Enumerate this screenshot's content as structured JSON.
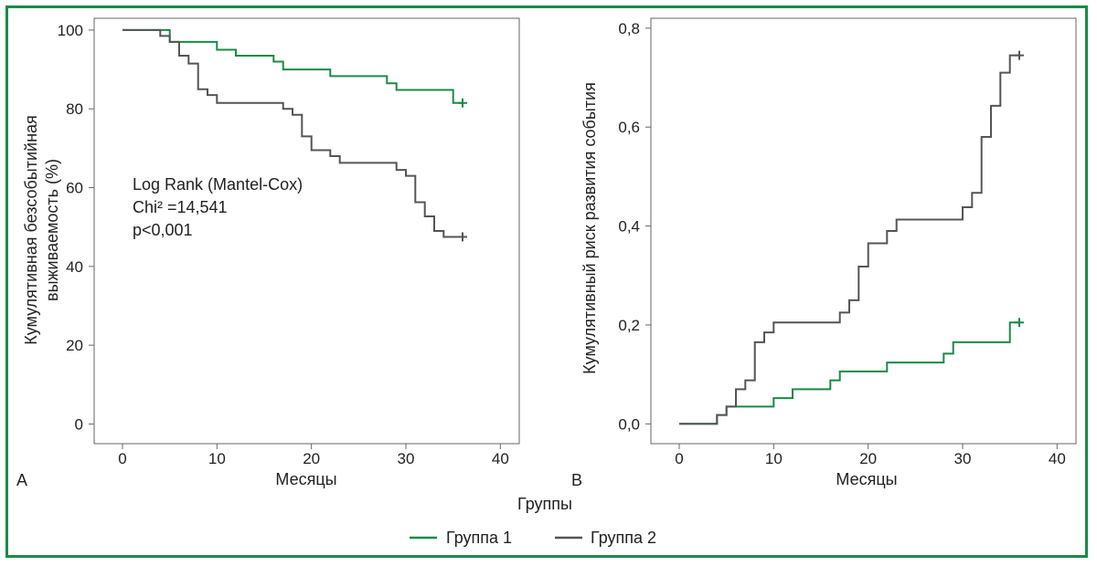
{
  "legend": {
    "title": "Группы",
    "items": [
      {
        "label": "Группа 1",
        "color": "#1a8a47"
      },
      {
        "label": "Группа 2",
        "color": "#555555"
      }
    ]
  },
  "chart_data": [
    {
      "type": "line",
      "panel_label": "A",
      "xlabel": "Месяцы",
      "ylabel_lines": [
        "Кумулятивная безсобытийная",
        "выживаемость (%)"
      ],
      "xlim": [
        -3,
        42
      ],
      "ylim": [
        -5,
        103
      ],
      "x_ticks": [
        0,
        10,
        20,
        30,
        40
      ],
      "y_ticks": [
        0,
        20,
        40,
        60,
        80,
        100
      ],
      "step": true,
      "annotation": [
        "Log Rank (Mantel-Cox)",
        "Chi² =14,541",
        "p<0,001"
      ],
      "series": [
        {
          "name": "Группа 1",
          "color": "#1a8a47",
          "censor": [
            36,
            81.5
          ],
          "points": [
            [
              0,
              100
            ],
            [
              5,
              100
            ],
            [
              5,
              97
            ],
            [
              10,
              97
            ],
            [
              10,
              95
            ],
            [
              12,
              95
            ],
            [
              12,
              93.5
            ],
            [
              16,
              93.5
            ],
            [
              16,
              92
            ],
            [
              17,
              92
            ],
            [
              17,
              90
            ],
            [
              22,
              90
            ],
            [
              22,
              88.3
            ],
            [
              28,
              88.3
            ],
            [
              28,
              86.5
            ],
            [
              29,
              86.5
            ],
            [
              29,
              84.8
            ],
            [
              35,
              84.8
            ],
            [
              35,
              81.5
            ],
            [
              36,
              81.5
            ]
          ]
        },
        {
          "name": "Группа 2",
          "color": "#555555",
          "censor": [
            36,
            47.5
          ],
          "points": [
            [
              0,
              100
            ],
            [
              4,
              100
            ],
            [
              4,
              98.5
            ],
            [
              5,
              98.5
            ],
            [
              5,
              97
            ],
            [
              6,
              97
            ],
            [
              6,
              93.5
            ],
            [
              7,
              93.5
            ],
            [
              7,
              91.5
            ],
            [
              8,
              91.5
            ],
            [
              8,
              85
            ],
            [
              9,
              85
            ],
            [
              9,
              83.5
            ],
            [
              10,
              83.5
            ],
            [
              10,
              81.5
            ],
            [
              17,
              81.5
            ],
            [
              17,
              80
            ],
            [
              18,
              80
            ],
            [
              18,
              78.5
            ],
            [
              19,
              78.5
            ],
            [
              19,
              73
            ],
            [
              20,
              73
            ],
            [
              20,
              69.5
            ],
            [
              22,
              69.5
            ],
            [
              22,
              68
            ],
            [
              23,
              68
            ],
            [
              23,
              66.3
            ],
            [
              29,
              66.3
            ],
            [
              29,
              64.5
            ],
            [
              30,
              64.5
            ],
            [
              30,
              63
            ],
            [
              31,
              63
            ],
            [
              31,
              56.3
            ],
            [
              32,
              56.3
            ],
            [
              32,
              52.7
            ],
            [
              33,
              52.7
            ],
            [
              33,
              49
            ],
            [
              34,
              49
            ],
            [
              34,
              47.5
            ],
            [
              36,
              47.5
            ]
          ]
        }
      ]
    },
    {
      "type": "line",
      "panel_label": "B",
      "xlabel": "Месяцы",
      "ylabel_lines": [
        "Кумулятивный риск развития события"
      ],
      "xlim": [
        -3,
        42
      ],
      "ylim": [
        -0.04,
        0.82
      ],
      "x_ticks": [
        0,
        10,
        20,
        30,
        40
      ],
      "y_ticks": [
        "0,0",
        "0,2",
        "0,4",
        "0,6",
        "0,8"
      ],
      "y_tick_values": [
        0,
        0.2,
        0.4,
        0.6,
        0.8
      ],
      "step": true,
      "series": [
        {
          "name": "Группа 1",
          "color": "#1a8a47",
          "censor": [
            36,
            0.205
          ],
          "points": [
            [
              0,
              0
            ],
            [
              4,
              0
            ],
            [
              4,
              0.018
            ],
            [
              5,
              0.018
            ],
            [
              5,
              0.035
            ],
            [
              10,
              0.035
            ],
            [
              10,
              0.052
            ],
            [
              12,
              0.052
            ],
            [
              12,
              0.07
            ],
            [
              16,
              0.07
            ],
            [
              16,
              0.088
            ],
            [
              17,
              0.088
            ],
            [
              17,
              0.106
            ],
            [
              22,
              0.106
            ],
            [
              22,
              0.124
            ],
            [
              28,
              0.124
            ],
            [
              28,
              0.142
            ],
            [
              29,
              0.142
            ],
            [
              29,
              0.165
            ],
            [
              35,
              0.165
            ],
            [
              35,
              0.205
            ],
            [
              36,
              0.205
            ]
          ]
        },
        {
          "name": "Группа 2",
          "color": "#555555",
          "censor": [
            36,
            0.745
          ],
          "points": [
            [
              0,
              0
            ],
            [
              4,
              0
            ],
            [
              4,
              0.018
            ],
            [
              5,
              0.018
            ],
            [
              5,
              0.035
            ],
            [
              6,
              0.035
            ],
            [
              6,
              0.07
            ],
            [
              7,
              0.07
            ],
            [
              7,
              0.088
            ],
            [
              8,
              0.088
            ],
            [
              8,
              0.165
            ],
            [
              9,
              0.165
            ],
            [
              9,
              0.185
            ],
            [
              10,
              0.185
            ],
            [
              10,
              0.205
            ],
            [
              17,
              0.205
            ],
            [
              17,
              0.225
            ],
            [
              18,
              0.225
            ],
            [
              18,
              0.25
            ],
            [
              19,
              0.25
            ],
            [
              19,
              0.318
            ],
            [
              20,
              0.318
            ],
            [
              20,
              0.365
            ],
            [
              22,
              0.365
            ],
            [
              22,
              0.39
            ],
            [
              23,
              0.39
            ],
            [
              23,
              0.413
            ],
            [
              30,
              0.413
            ],
            [
              30,
              0.438
            ],
            [
              31,
              0.438
            ],
            [
              31,
              0.467
            ],
            [
              32,
              0.467
            ],
            [
              32,
              0.58
            ],
            [
              33,
              0.58
            ],
            [
              33,
              0.643
            ],
            [
              34,
              0.643
            ],
            [
              34,
              0.71
            ],
            [
              35,
              0.71
            ],
            [
              35,
              0.745
            ],
            [
              36,
              0.745
            ]
          ]
        }
      ]
    }
  ]
}
